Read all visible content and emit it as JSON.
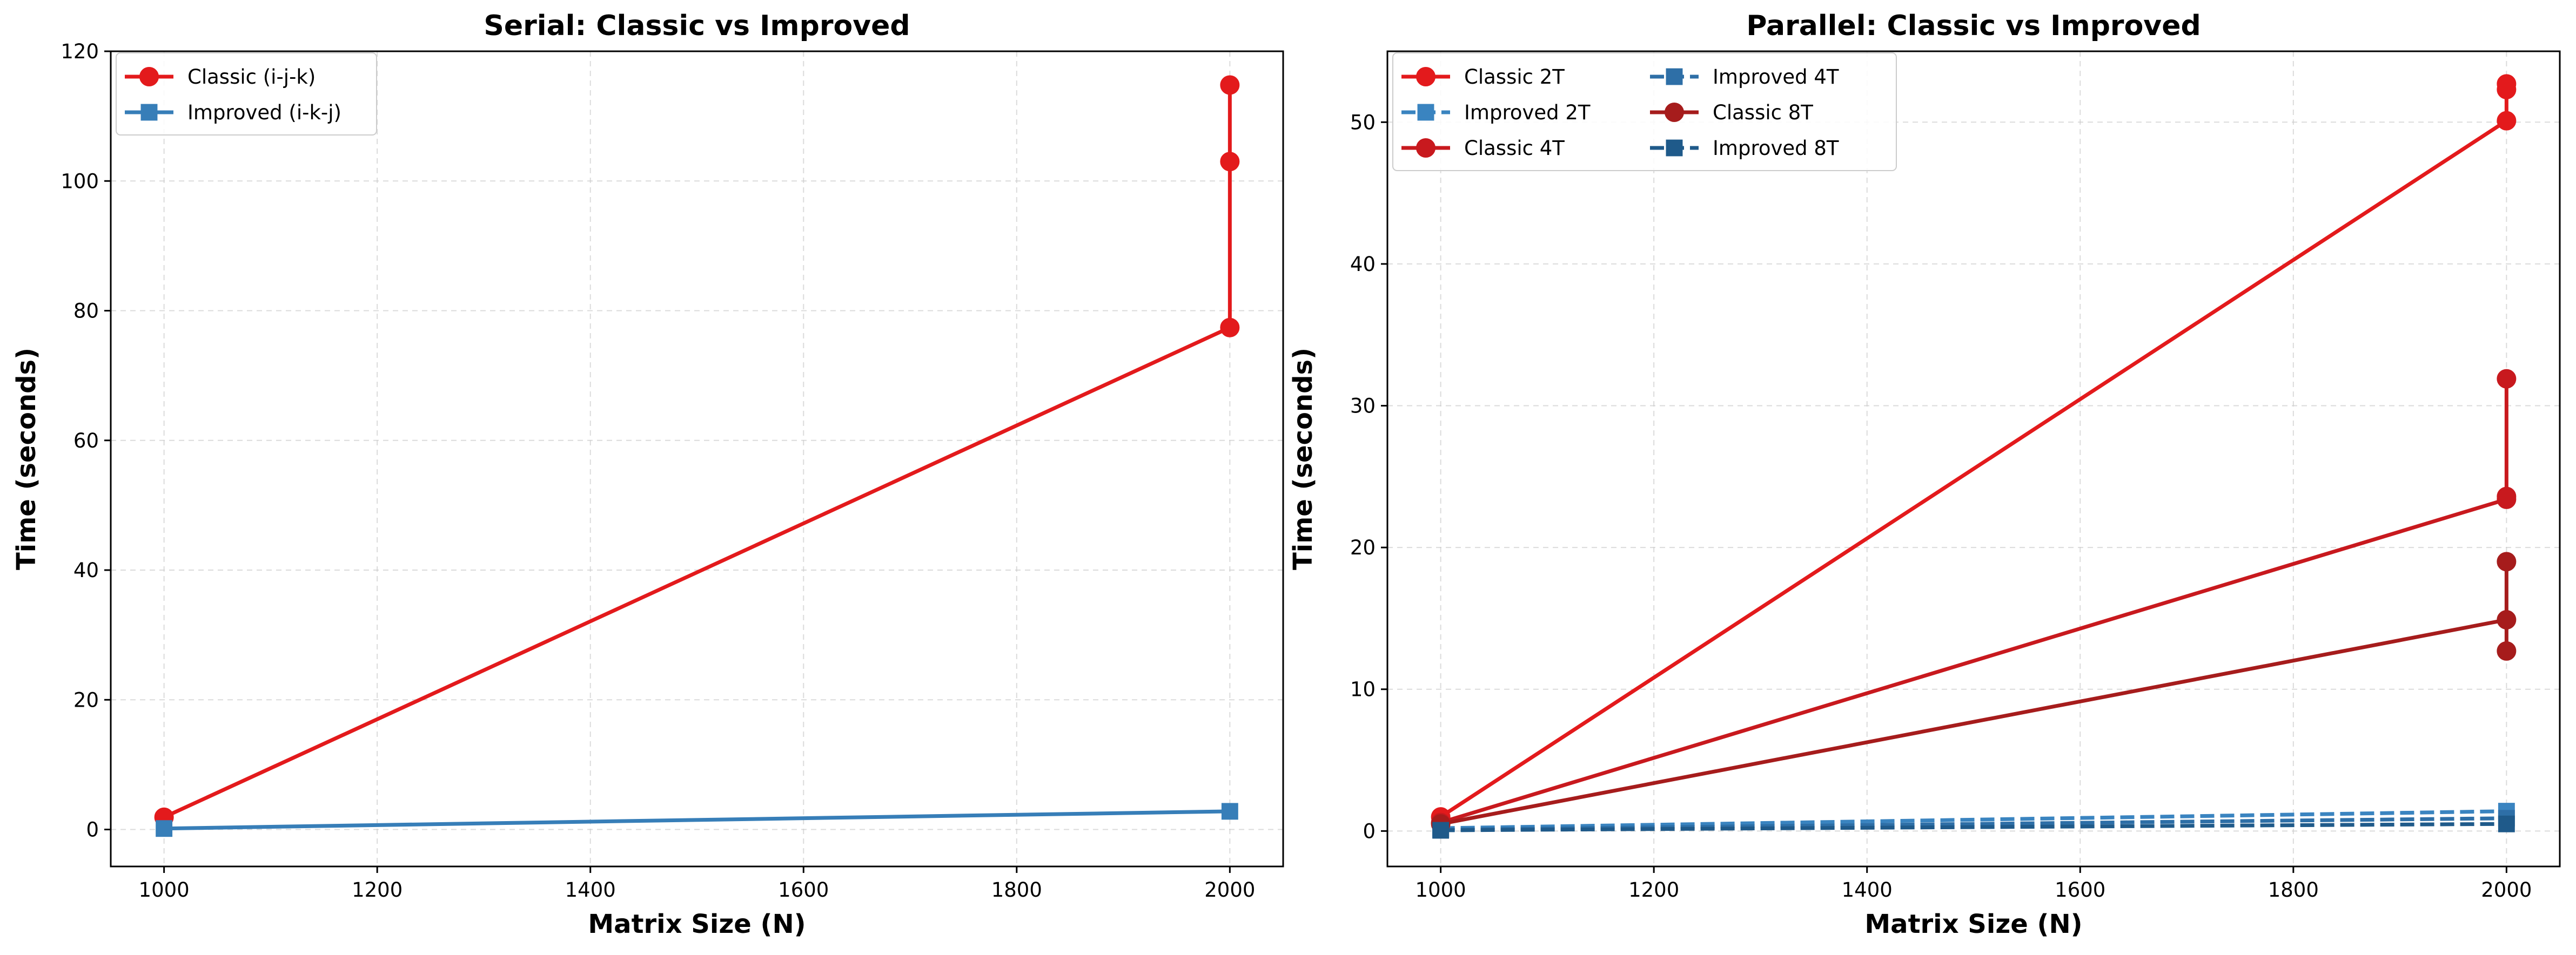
{
  "chart_data": [
    {
      "type": "line",
      "title": "Serial: Classic vs Improved",
      "xlabel": "Matrix Size (N)",
      "ylabel": "Time (seconds)",
      "xlim": [
        950,
        2050
      ],
      "ylim": [
        -5.7,
        120
      ],
      "xticks": [
        1000,
        1200,
        1400,
        1600,
        1800,
        2000
      ],
      "yticks": [
        0,
        20,
        40,
        60,
        80,
        100,
        120
      ],
      "grid": true,
      "legend_position": "top-left",
      "legend_columns": 1,
      "series": [
        {
          "name": "Classic (i-j-k)",
          "color": "#e31a1c",
          "marker": "circle",
          "dash": false,
          "points": [
            [
              1000,
              1.9
            ],
            [
              2000,
              77.4
            ],
            [
              2000,
              103.0
            ],
            [
              2000,
              114.8
            ]
          ]
        },
        {
          "name": "Improved (i-k-j)",
          "color": "#377eb8",
          "marker": "square",
          "dash": false,
          "points": [
            [
              1000,
              0.15
            ],
            [
              2000,
              2.8
            ]
          ]
        }
      ]
    },
    {
      "type": "line",
      "title": "Parallel: Classic vs Improved",
      "xlabel": "Matrix Size (N)",
      "ylabel": "Time (seconds)",
      "xlim": [
        950,
        2050
      ],
      "ylim": [
        -2.5,
        55
      ],
      "xticks": [
        1000,
        1200,
        1400,
        1600,
        1800,
        2000
      ],
      "yticks": [
        0,
        10,
        20,
        30,
        40,
        50
      ],
      "grid": true,
      "legend_position": "top-left",
      "legend_columns": 2,
      "series": [
        {
          "name": "Classic 2T",
          "color": "#e31a1c",
          "marker": "circle",
          "dash": false,
          "points": [
            [
              1000,
              1.0
            ],
            [
              2000,
              50.1
            ],
            [
              2000,
              52.3
            ],
            [
              2000,
              52.7
            ]
          ]
        },
        {
          "name": "Improved 2T",
          "color": "#3a84c0",
          "marker": "square",
          "dash": true,
          "points": [
            [
              1000,
              0.2
            ],
            [
              2000,
              1.4
            ]
          ]
        },
        {
          "name": "Classic 4T",
          "color": "#c8191e",
          "marker": "circle",
          "dash": false,
          "points": [
            [
              1000,
              0.6
            ],
            [
              2000,
              23.4
            ],
            [
              2000,
              23.6
            ],
            [
              2000,
              31.9
            ]
          ]
        },
        {
          "name": "Improved 4T",
          "color": "#2e6fa7",
          "marker": "square",
          "dash": true,
          "points": [
            [
              1000,
              0.1
            ],
            [
              2000,
              0.9
            ]
          ]
        },
        {
          "name": "Classic 8T",
          "color": "#a61c1c",
          "marker": "circle",
          "dash": false,
          "points": [
            [
              1000,
              0.5
            ],
            [
              2000,
              14.9
            ],
            [
              2000,
              12.7
            ],
            [
              2000,
              19.0
            ]
          ]
        },
        {
          "name": "Improved 8T",
          "color": "#1f5a8a",
          "marker": "square",
          "dash": true,
          "points": [
            [
              1000,
              0.05
            ],
            [
              2000,
              0.5
            ]
          ]
        }
      ]
    }
  ]
}
